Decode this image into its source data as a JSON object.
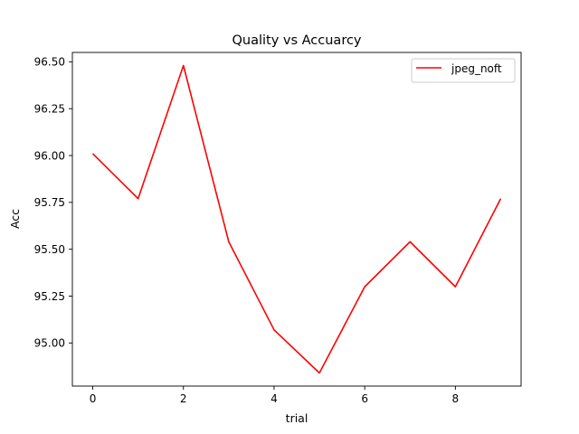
{
  "chart_data": {
    "type": "line",
    "title": "Quality vs Accuarcy",
    "xlabel": "trial",
    "ylabel": "Acc",
    "x": [
      0,
      1,
      2,
      3,
      4,
      5,
      6,
      7,
      8,
      9
    ],
    "series": [
      {
        "name": "jpeg_noft",
        "color": "#ff0000",
        "values": [
          96.01,
          95.77,
          96.48,
          95.54,
          95.07,
          94.84,
          95.3,
          95.54,
          95.3,
          95.77
        ]
      }
    ],
    "xlim": [
      -0.45,
      9.45
    ],
    "ylim": [
      94.77,
      96.55
    ],
    "xticks": [
      0,
      2,
      4,
      6,
      8
    ],
    "xtick_labels": [
      "0",
      "2",
      "4",
      "6",
      "8"
    ],
    "yticks": [
      95.0,
      95.25,
      95.5,
      95.75,
      96.0,
      96.25,
      96.5
    ],
    "ytick_labels": [
      "95.00",
      "95.25",
      "95.50",
      "95.75",
      "96.00",
      "96.25",
      "96.50"
    ],
    "grid": false,
    "legend_position": "upper right"
  }
}
